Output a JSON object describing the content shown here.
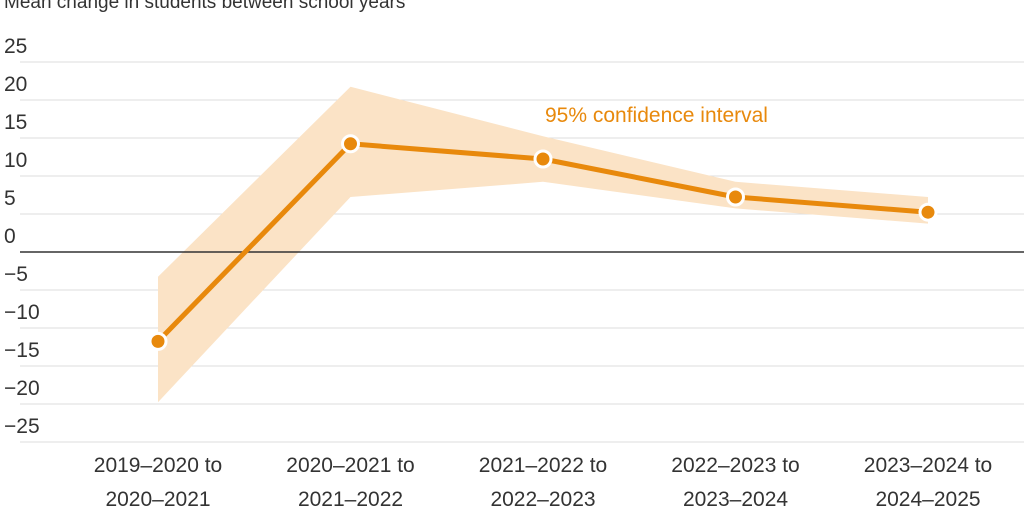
{
  "chart_data": {
    "type": "line",
    "ylabel": "Mean change in students between school years",
    "categories": [
      [
        "2019–2020 to",
        "2020–2021"
      ],
      [
        "2020–2021 to",
        "2021–2022"
      ],
      [
        "2021–2022 to",
        "2022–2023"
      ],
      [
        "2022–2023 to",
        "2023–2024"
      ],
      [
        "2023–2024 to",
        "2024–2025"
      ]
    ],
    "series": [
      {
        "name": "Mean change",
        "values": [
          -14,
          12,
          10,
          5,
          3
        ],
        "ci_lower": [
          -22,
          5,
          7,
          3.5,
          1.5
        ],
        "ci_upper": [
          -5.5,
          19.5,
          13,
          7,
          5
        ]
      }
    ],
    "ylim": [
      -25,
      25
    ],
    "yticks": [
      25,
      20,
      15,
      10,
      5,
      0,
      -5,
      -10,
      -15,
      -20,
      -25
    ],
    "ytick_labels": [
      "25",
      "20",
      "15",
      "10",
      "5",
      "0",
      "−5",
      "−10",
      "−15",
      "−20",
      "−25"
    ],
    "annotation": "95% confidence interval",
    "colors": {
      "line": "#e8890c",
      "band": "#fbe3c6",
      "annotation": "#e8890c",
      "zero_line": "#333333",
      "grid": "#dddddd"
    }
  }
}
